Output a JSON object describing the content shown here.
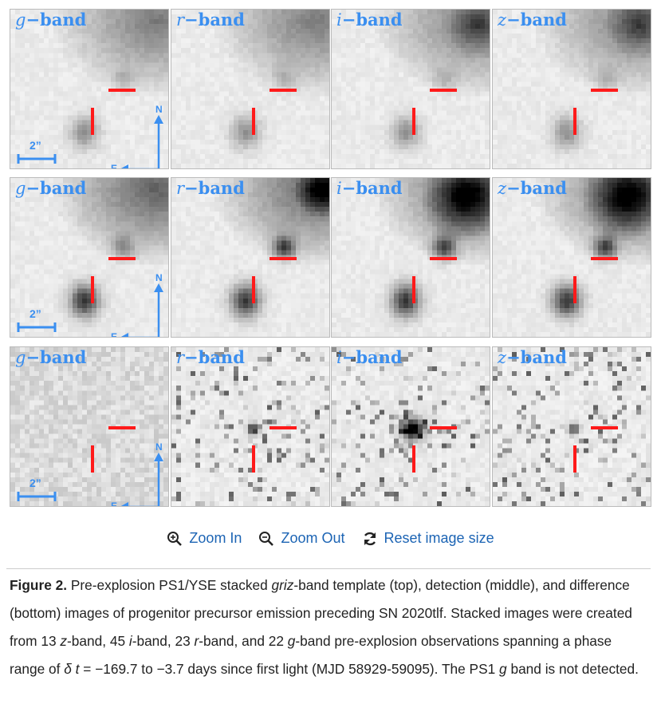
{
  "figure": {
    "rows": [
      {
        "name": "template",
        "bands": [
          "g",
          "r",
          "i",
          "z"
        ]
      },
      {
        "name": "detection",
        "bands": [
          "g",
          "r",
          "i",
          "z"
        ]
      },
      {
        "name": "difference",
        "bands": [
          "g",
          "r",
          "i",
          "z"
        ]
      }
    ],
    "band_suffix": "−band",
    "scale_label": "2”",
    "compass_north": "N",
    "compass_east": "E",
    "marker_color": "#ff1a1a",
    "label_color": "#3b8ff0"
  },
  "controls": {
    "zoom_in": "Zoom In",
    "zoom_out": "Zoom Out",
    "reset": "Reset image size"
  },
  "caption": {
    "label": "Figure 2.",
    "t1": " Pre-explosion PS1/YSE stacked ",
    "i1": "griz",
    "t2": "-band template (top), detection (middle), and difference (bottom) images of progenitor precursor emission preceding SN 2020tlf. Stacked images were created from 13 ",
    "i2": "z",
    "t3": "-band, 45 ",
    "i3": "i",
    "t4": "-band, 23 ",
    "i4": "r",
    "t5": "-band, and 22 ",
    "i5": "g",
    "t6": "-band pre-explosion observations spanning a phase range of ",
    "i6": "δ t",
    "t7": " = −169.7 to −3.7 days since first light (MJD 58929-59095). The PS1 ",
    "i7": "g",
    "t8": " band is not detected."
  }
}
